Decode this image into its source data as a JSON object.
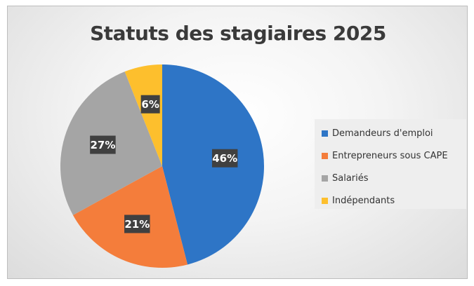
{
  "chart_data": {
    "type": "pie",
    "title": "Statuts des stagiaires 2025",
    "categories": [
      "Demandeurs d'emploi",
      "Entrepreneurs sous CAPE",
      "Salariés",
      "Indépendants"
    ],
    "values": [
      46,
      21,
      27,
      6
    ],
    "data_labels": [
      "46%",
      "21%",
      "27%",
      "6%"
    ],
    "colors": [
      "#2E75C6",
      "#F47D3B",
      "#A5A5A5",
      "#FDBF2D"
    ],
    "legend_position": "right",
    "start_angle_deg": 0,
    "direction": "clockwise"
  }
}
